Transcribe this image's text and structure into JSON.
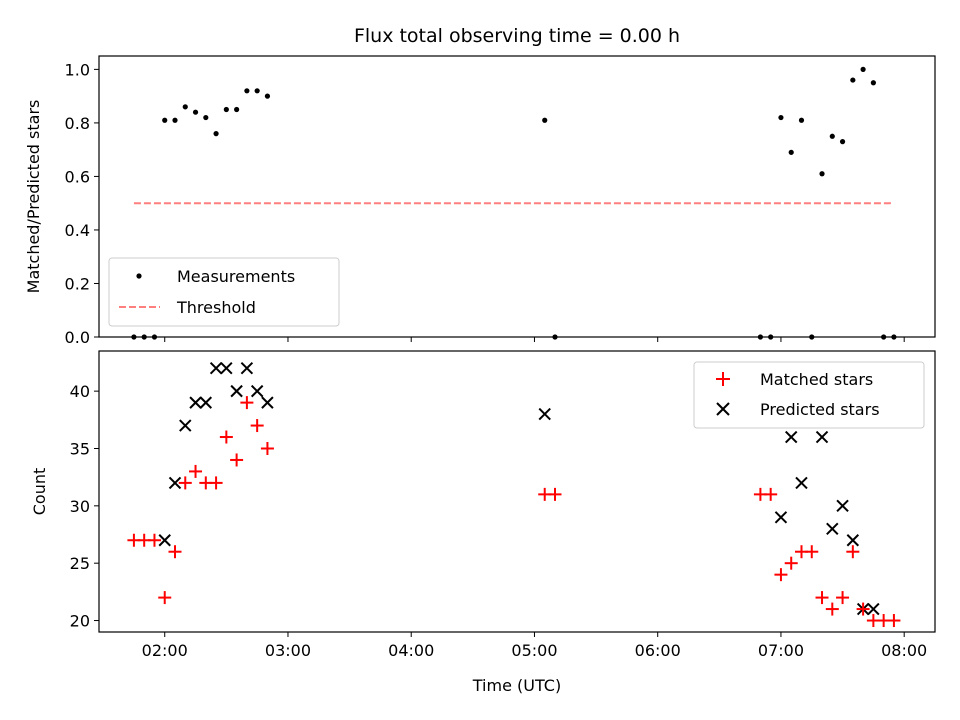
{
  "title": "Flux total observing time = 0.00 h",
  "colors": {
    "measurement": "#000000",
    "threshold": "#ff7f7f",
    "matched": "#ff0000",
    "predicted": "#000000"
  },
  "chart_data": [
    {
      "type": "scatter",
      "ylabel": "Matched/Predicted stars",
      "xlim": [
        "01:28",
        "08:15"
      ],
      "ylim": [
        0,
        1.05
      ],
      "yticks": [
        "0.0",
        "0.2",
        "0.4",
        "0.6",
        "0.8",
        "1.0"
      ],
      "legend_position": "lower-left",
      "series": [
        {
          "name": "Measurements",
          "marker": "dot",
          "x": [
            "01:45",
            "01:50",
            "01:55",
            "02:00",
            "02:05",
            "02:10",
            "02:15",
            "02:20",
            "02:25",
            "02:30",
            "02:35",
            "02:40",
            "02:45",
            "02:50",
            "05:05",
            "05:10",
            "06:50",
            "06:55",
            "07:00",
            "07:05",
            "07:10",
            "07:15",
            "07:20",
            "07:25",
            "07:30",
            "07:35",
            "07:40",
            "07:45",
            "07:50",
            "07:55"
          ],
          "y": [
            0.0,
            0.0,
            0.0,
            0.81,
            0.81,
            0.86,
            0.84,
            0.82,
            0.76,
            0.85,
            0.85,
            0.92,
            0.92,
            0.9,
            0.81,
            0.0,
            0.0,
            0.0,
            0.82,
            0.69,
            0.81,
            0.0,
            0.61,
            0.75,
            0.73,
            0.96,
            1.0,
            0.95,
            0.0,
            0.0
          ]
        },
        {
          "name": "Threshold",
          "type": "line",
          "style": "dashed",
          "x": [
            "01:45",
            "07:55"
          ],
          "y": [
            0.5,
            0.5
          ]
        }
      ]
    },
    {
      "type": "scatter",
      "xlabel": "Time (UTC)",
      "ylabel": "Count",
      "xlim": [
        "01:28",
        "08:15"
      ],
      "ylim": [
        19,
        43.5
      ],
      "yticks": [
        "20",
        "25",
        "30",
        "35",
        "40"
      ],
      "xticks": [
        "02:00",
        "03:00",
        "04:00",
        "05:00",
        "06:00",
        "07:00",
        "08:00"
      ],
      "legend_position": "top-right",
      "series": [
        {
          "name": "Matched stars",
          "marker": "plus",
          "x": [
            "01:45",
            "01:50",
            "01:55",
            "02:00",
            "02:05",
            "02:10",
            "02:15",
            "02:20",
            "02:25",
            "02:30",
            "02:35",
            "02:40",
            "02:45",
            "02:50",
            "05:05",
            "05:10",
            "06:50",
            "06:55",
            "07:00",
            "07:05",
            "07:10",
            "07:15",
            "07:20",
            "07:25",
            "07:30",
            "07:35",
            "07:40",
            "07:45",
            "07:50",
            "07:55"
          ],
          "y": [
            27,
            27,
            27,
            22,
            26,
            32,
            33,
            32,
            32,
            36,
            34,
            39,
            37,
            35,
            31,
            31,
            31,
            31,
            24,
            25,
            26,
            26,
            22,
            21,
            22,
            26,
            21,
            20,
            20,
            20
          ]
        },
        {
          "name": "Predicted stars",
          "marker": "x",
          "x": [
            "02:00",
            "02:05",
            "02:10",
            "02:15",
            "02:20",
            "02:25",
            "02:30",
            "02:35",
            "02:40",
            "02:45",
            "02:50",
            "05:05",
            "07:00",
            "07:05",
            "07:10",
            "07:20",
            "07:25",
            "07:30",
            "07:35",
            "07:40",
            "07:45"
          ],
          "y": [
            27,
            32,
            37,
            39,
            39,
            42,
            42,
            40,
            42,
            40,
            39,
            38,
            29,
            36,
            32,
            36,
            28,
            30,
            27,
            21,
            21
          ]
        }
      ]
    }
  ]
}
